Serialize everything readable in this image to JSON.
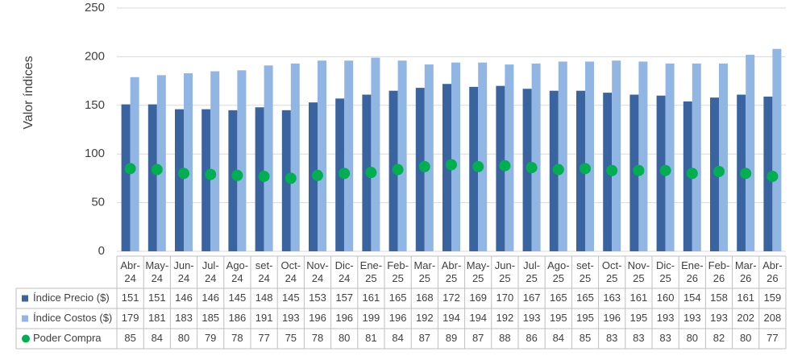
{
  "chart_data": {
    "type": "bar",
    "y_axis_label": "Valor índices",
    "categories": [
      "Abr-24",
      "May-24",
      "Jun-24",
      "Jul-24",
      "Ago-24",
      "set-24",
      "Oct-24",
      "Nov-24",
      "Dic-24",
      "Ene-25",
      "Feb-25",
      "Mar-25",
      "Abr-25",
      "May-25",
      "Jun-25",
      "Jul-25",
      "Ago-25",
      "set-25",
      "Oct-25",
      "Nov-25",
      "Dic-25",
      "Ene-26",
      "Feb-26",
      "Mar-26",
      "Abr-26"
    ],
    "series": [
      {
        "name": "Índice Precio ($)",
        "color": "#3a64a0",
        "mark": "bar",
        "values": [
          151,
          151,
          146,
          146,
          145,
          148,
          145,
          153,
          157,
          161,
          165,
          168,
          172,
          169,
          170,
          167,
          165,
          165,
          163,
          161,
          160,
          154,
          158,
          161,
          159
        ]
      },
      {
        "name": "Índice Costos ($)",
        "color": "#92b6e4",
        "mark": "bar",
        "values": [
          179,
          181,
          183,
          185,
          186,
          191,
          193,
          196,
          196,
          199,
          196,
          192,
          194,
          194,
          192,
          193,
          195,
          195,
          196,
          195,
          193,
          193,
          193,
          202,
          208
        ]
      },
      {
        "name": "Poder Compra",
        "color": "#00b050",
        "mark": "dot",
        "values": [
          85,
          84,
          80,
          79,
          78,
          77,
          75,
          78,
          80,
          81,
          84,
          87,
          89,
          87,
          88,
          86,
          84,
          85,
          83,
          83,
          83,
          80,
          82,
          80,
          77
        ]
      }
    ],
    "ylim": [
      0,
      250
    ],
    "yticks": [
      0,
      50,
      100,
      150,
      200,
      250
    ],
    "grid": true
  }
}
